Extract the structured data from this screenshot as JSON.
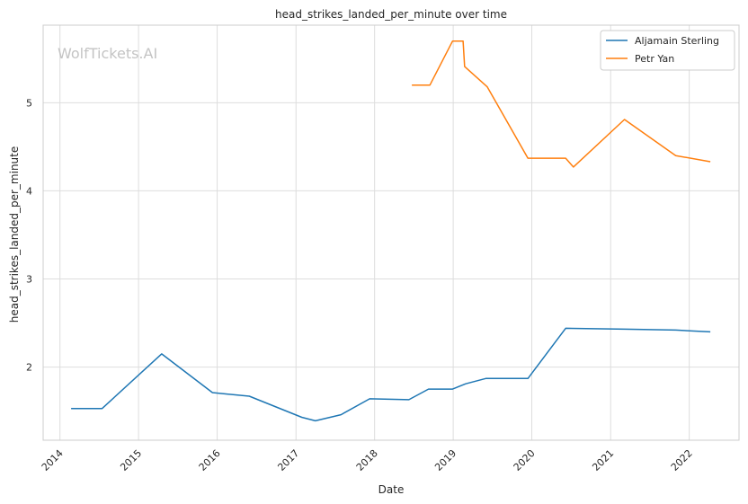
{
  "chart_data": {
    "type": "line",
    "title": "head_strikes_landed_per_minute over time",
    "xlabel": "Date",
    "ylabel": "head_strikes_landed_per_minute",
    "watermark": "WolfTickets.AI",
    "xlim": [
      "2013-10-15",
      "2022-08-20"
    ],
    "ylim": [
      1.17,
      5.88
    ],
    "x_ticks": [
      "2014",
      "2015",
      "2016",
      "2017",
      "2018",
      "2019",
      "2020",
      "2021",
      "2022"
    ],
    "y_ticks": [
      "2",
      "3",
      "4",
      "5"
    ],
    "grid": true,
    "legend_position": "top-right",
    "colors": {
      "Aljamain Sterling": "#1f77b4",
      "Petr Yan": "#ff7f0e"
    },
    "series": [
      {
        "name": "Aljamain Sterling",
        "points": [
          [
            "2014-02-22",
            1.53
          ],
          [
            "2014-07-16",
            1.53
          ],
          [
            "2015-04-18",
            2.15
          ],
          [
            "2015-12-10",
            1.71
          ],
          [
            "2016-05-29",
            1.67
          ],
          [
            "2017-01-28",
            1.43
          ],
          [
            "2017-04-01",
            1.39
          ],
          [
            "2017-07-29",
            1.46
          ],
          [
            "2017-12-09",
            1.64
          ],
          [
            "2018-06-09",
            1.63
          ],
          [
            "2018-09-08",
            1.75
          ],
          [
            "2018-12-29",
            1.75
          ],
          [
            "2019-02-28",
            1.81
          ],
          [
            "2019-06-01",
            1.87
          ],
          [
            "2019-12-14",
            1.87
          ],
          [
            "2020-06-06",
            2.44
          ],
          [
            "2021-03-06",
            2.43
          ],
          [
            "2021-10-30",
            2.42
          ],
          [
            "2022-04-09",
            2.4
          ]
        ]
      },
      {
        "name": "Petr Yan",
        "points": [
          [
            "2018-06-23",
            5.2
          ],
          [
            "2018-09-15",
            5.2
          ],
          [
            "2018-12-29",
            5.7
          ],
          [
            "2019-02-16",
            5.7
          ],
          [
            "2019-02-23",
            5.41
          ],
          [
            "2019-06-08",
            5.18
          ],
          [
            "2019-12-14",
            4.37
          ],
          [
            "2020-06-06",
            4.37
          ],
          [
            "2020-07-12",
            4.27
          ],
          [
            "2021-03-06",
            4.81
          ],
          [
            "2021-10-30",
            4.4
          ],
          [
            "2022-04-09",
            4.33
          ]
        ]
      }
    ]
  }
}
